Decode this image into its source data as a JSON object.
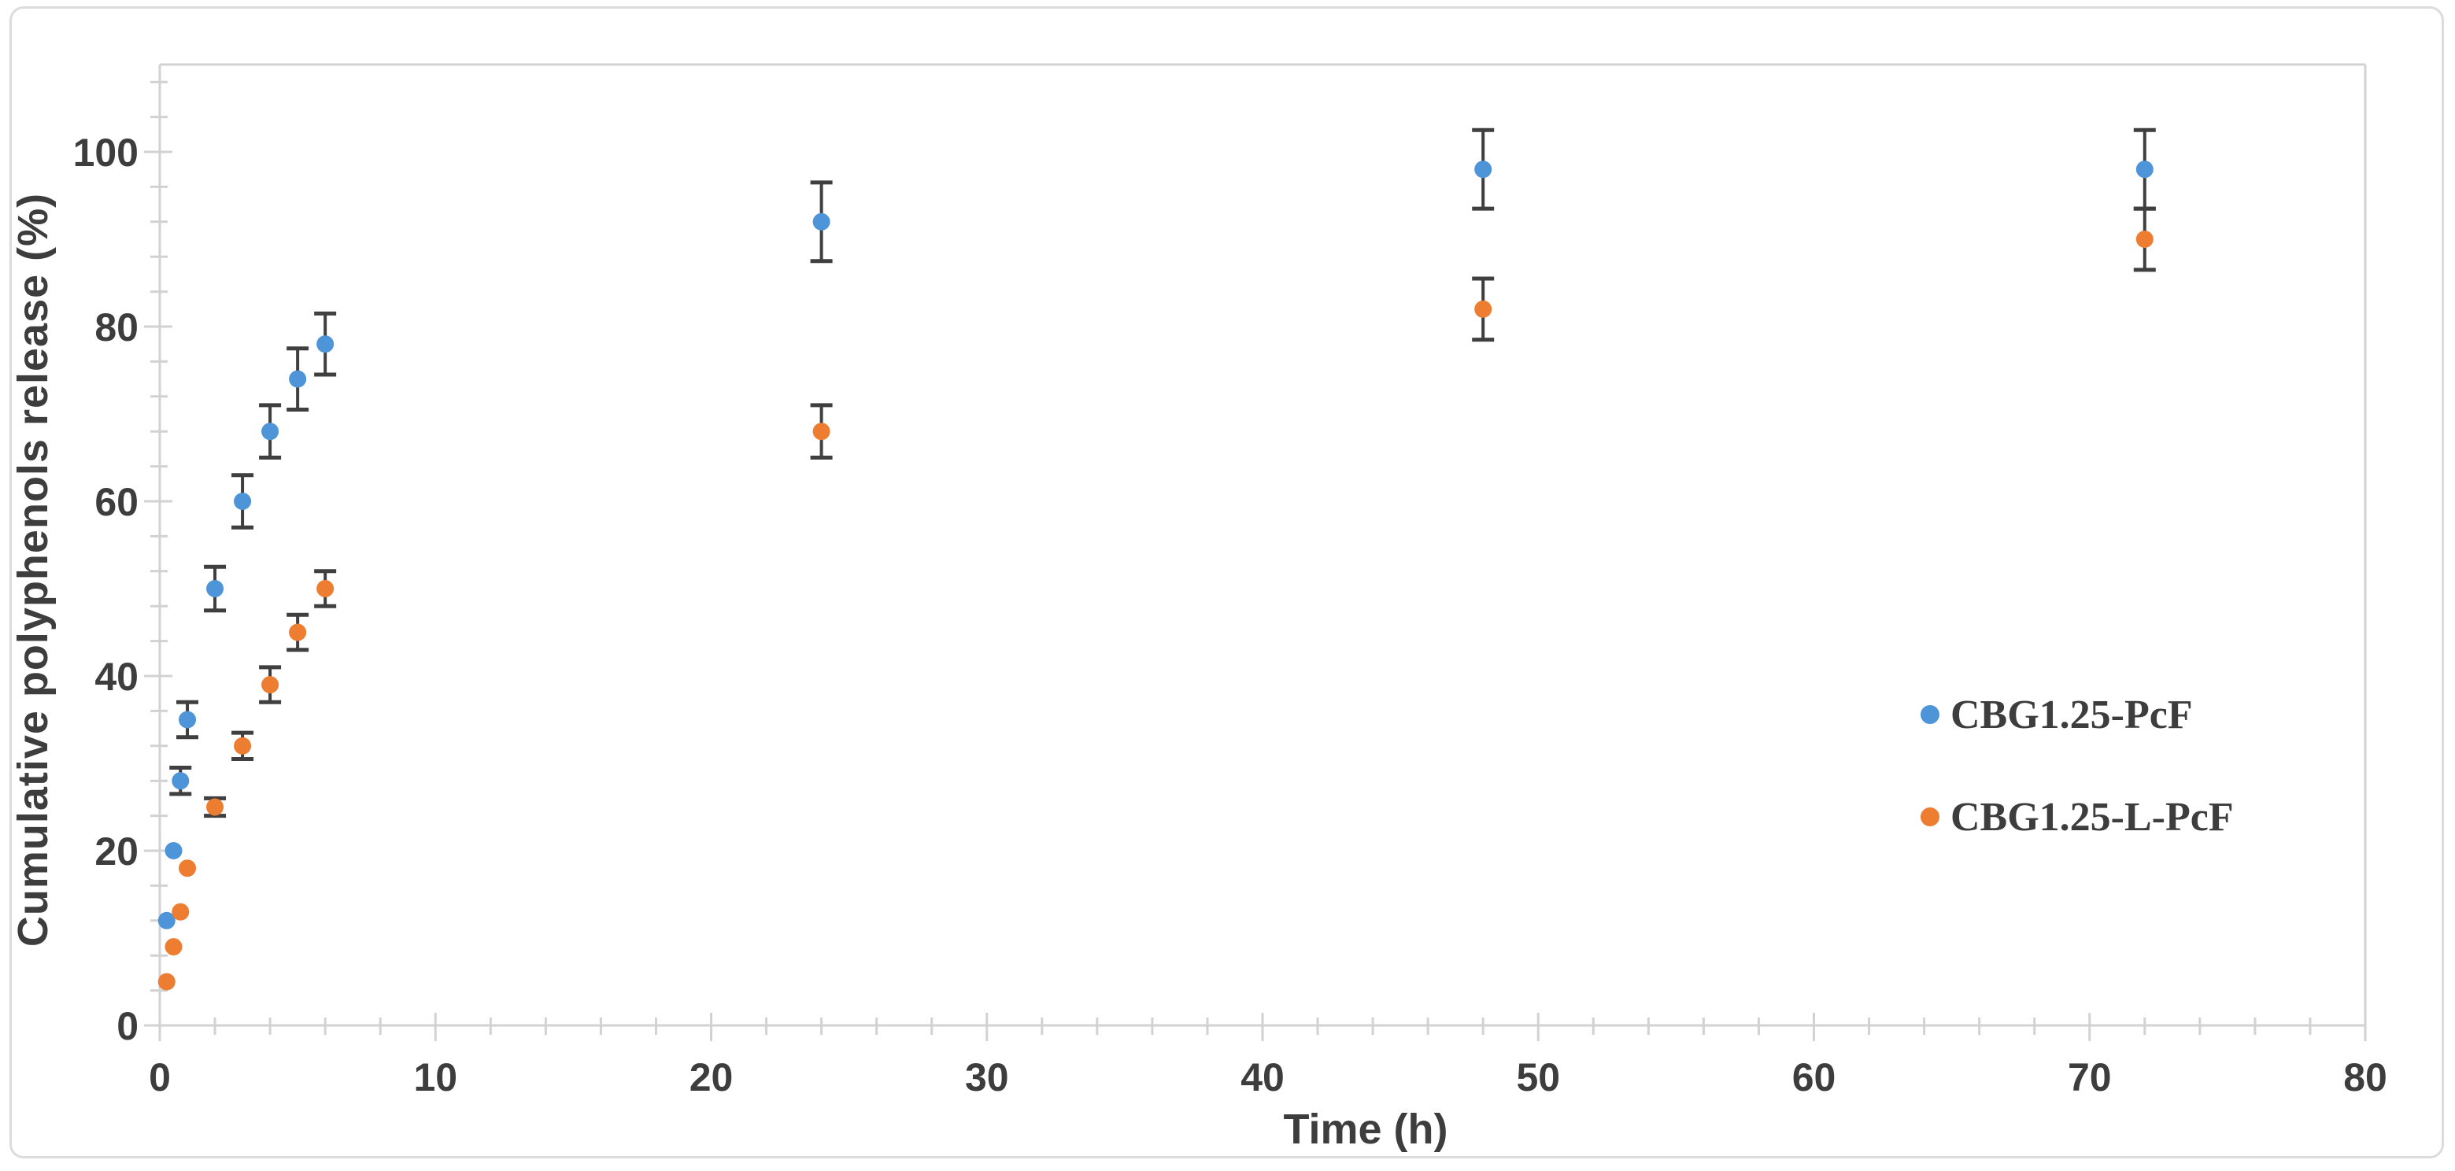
{
  "styles": {
    "background": "#ffffff",
    "frame_border_color": "#dcdcdc",
    "axis_color": "#d2d2d2",
    "tick_label_color": "#3d3d3d",
    "axis_title_color": "#3d3d3d",
    "legend_text_color": "#3d3d3d",
    "error_bar_color": "#3f3f3f"
  },
  "chart_data": {
    "type": "scatter",
    "title": "",
    "xlabel": "Time (h)",
    "ylabel": "Cumulative polyphenols release (%)",
    "xlim": [
      0,
      80
    ],
    "ylim": [
      0,
      110
    ],
    "x_major_ticks": [
      0,
      10,
      20,
      30,
      40,
      50,
      60,
      70,
      80
    ],
    "x_minor_step": 2,
    "y_major_ticks": [
      0,
      20,
      40,
      60,
      80,
      100
    ],
    "y_minor_step": 4,
    "grid": false,
    "legend_position": "right-middle",
    "marker_radius": 11,
    "series": [
      {
        "name": "CBG1.25-PcF",
        "color": "#4E94D8",
        "points": [
          {
            "x": 0.25,
            "y": 12,
            "err": 0
          },
          {
            "x": 0.5,
            "y": 20,
            "err": 0
          },
          {
            "x": 0.75,
            "y": 28,
            "err": 1.5
          },
          {
            "x": 1,
            "y": 35,
            "err": 2
          },
          {
            "x": 2,
            "y": 50,
            "err": 2.5
          },
          {
            "x": 3,
            "y": 60,
            "err": 3
          },
          {
            "x": 4,
            "y": 68,
            "err": 3
          },
          {
            "x": 5,
            "y": 74,
            "err": 3.5
          },
          {
            "x": 6,
            "y": 78,
            "err": 3.5
          },
          {
            "x": 24,
            "y": 92,
            "err": 4.5
          },
          {
            "x": 48,
            "y": 98,
            "err": 4.5
          },
          {
            "x": 72,
            "y": 98,
            "err": 4.5
          }
        ]
      },
      {
        "name": "CBG1.25-L-PcF",
        "color": "#ED7D31",
        "points": [
          {
            "x": 0.25,
            "y": 5,
            "err": 0
          },
          {
            "x": 0.5,
            "y": 9,
            "err": 0
          },
          {
            "x": 0.75,
            "y": 13,
            "err": 0
          },
          {
            "x": 1,
            "y": 18,
            "err": 0
          },
          {
            "x": 2,
            "y": 25,
            "err": 1
          },
          {
            "x": 3,
            "y": 32,
            "err": 1.5
          },
          {
            "x": 4,
            "y": 39,
            "err": 2
          },
          {
            "x": 5,
            "y": 45,
            "err": 2
          },
          {
            "x": 6,
            "y": 50,
            "err": 2
          },
          {
            "x": 24,
            "y": 68,
            "err": 3
          },
          {
            "x": 48,
            "y": 82,
            "err": 3.5
          },
          {
            "x": 72,
            "y": 90,
            "err": 3.5
          }
        ]
      }
    ]
  }
}
